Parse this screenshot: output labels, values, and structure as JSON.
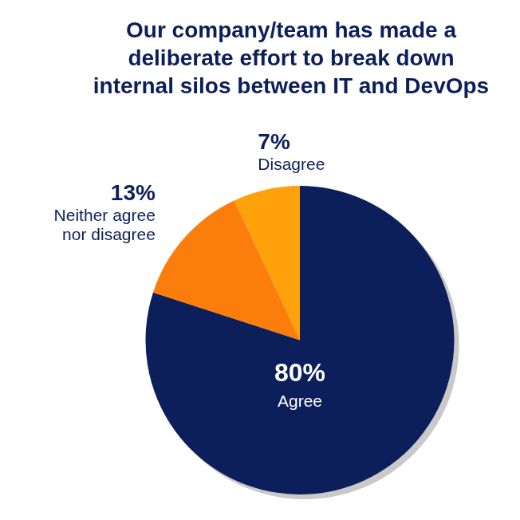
{
  "chart_data": {
    "type": "pie",
    "title": "Our company/team has made a deliberate effort to break down internal silos between IT and DevOps",
    "categories": [
      "Agree",
      "Neither agree nor disagree",
      "Disagree"
    ],
    "values": [
      80,
      13,
      7
    ],
    "value_labels": [
      "80%",
      "13%",
      "7%"
    ],
    "colors": [
      "#0c1f5b",
      "#fb7d0c",
      "#ffa10a"
    ],
    "data_labels": true
  }
}
